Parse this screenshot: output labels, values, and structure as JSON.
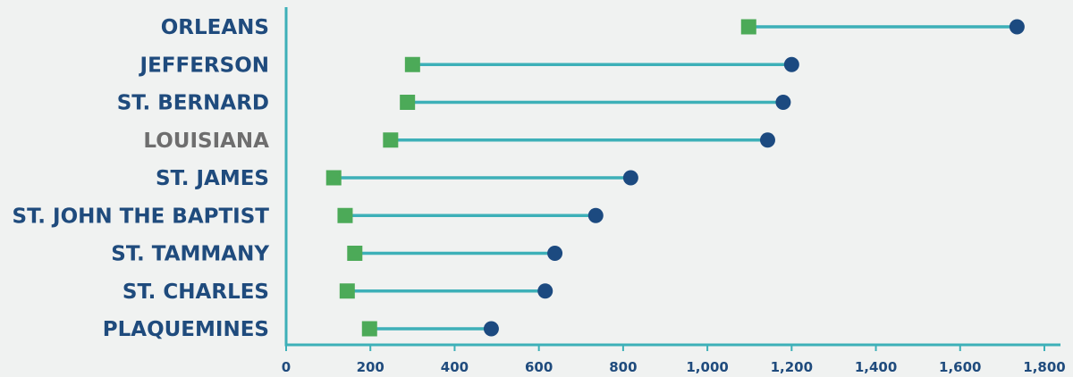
{
  "chart_data": {
    "type": "dumbbell",
    "title": "",
    "xlabel": "",
    "ylabel": "",
    "xlim": [
      0,
      1800
    ],
    "xticks": [
      0,
      200,
      400,
      600,
      800,
      1000,
      1200,
      1400,
      1600,
      1800
    ],
    "xtick_labels": [
      "0",
      "200",
      "400",
      "600",
      "800",
      "1,000",
      "1,200",
      "1,400",
      "1,600",
      "1,800"
    ],
    "grid": false,
    "legend": "none",
    "colors": {
      "start_marker": "#4caa58",
      "end_marker": "#1c4a80",
      "connector": "#3db0b8",
      "axis": "#3db0b8",
      "label": "#1f4b7d",
      "highlight_label": "#6e6e6e",
      "background": "#f0f2f1"
    },
    "categories": [
      "ORLEANS",
      "JEFFERSON",
      "ST. BERNARD",
      "LOUISIANA",
      "ST. JAMES",
      "ST. JOHN THE BAPTIST",
      "ST. TAMMANY",
      "ST. CHARLES",
      "PLAQUEMINES"
    ],
    "highlight": [
      "LOUISIANA"
    ],
    "series": [
      {
        "marker": "square",
        "values": [
          1098,
          300,
          288,
          248,
          113,
          140,
          163,
          145,
          198
        ]
      },
      {
        "marker": "circle",
        "values": [
          1735,
          1200,
          1180,
          1143,
          818,
          735,
          638,
          615,
          487
        ]
      }
    ]
  }
}
